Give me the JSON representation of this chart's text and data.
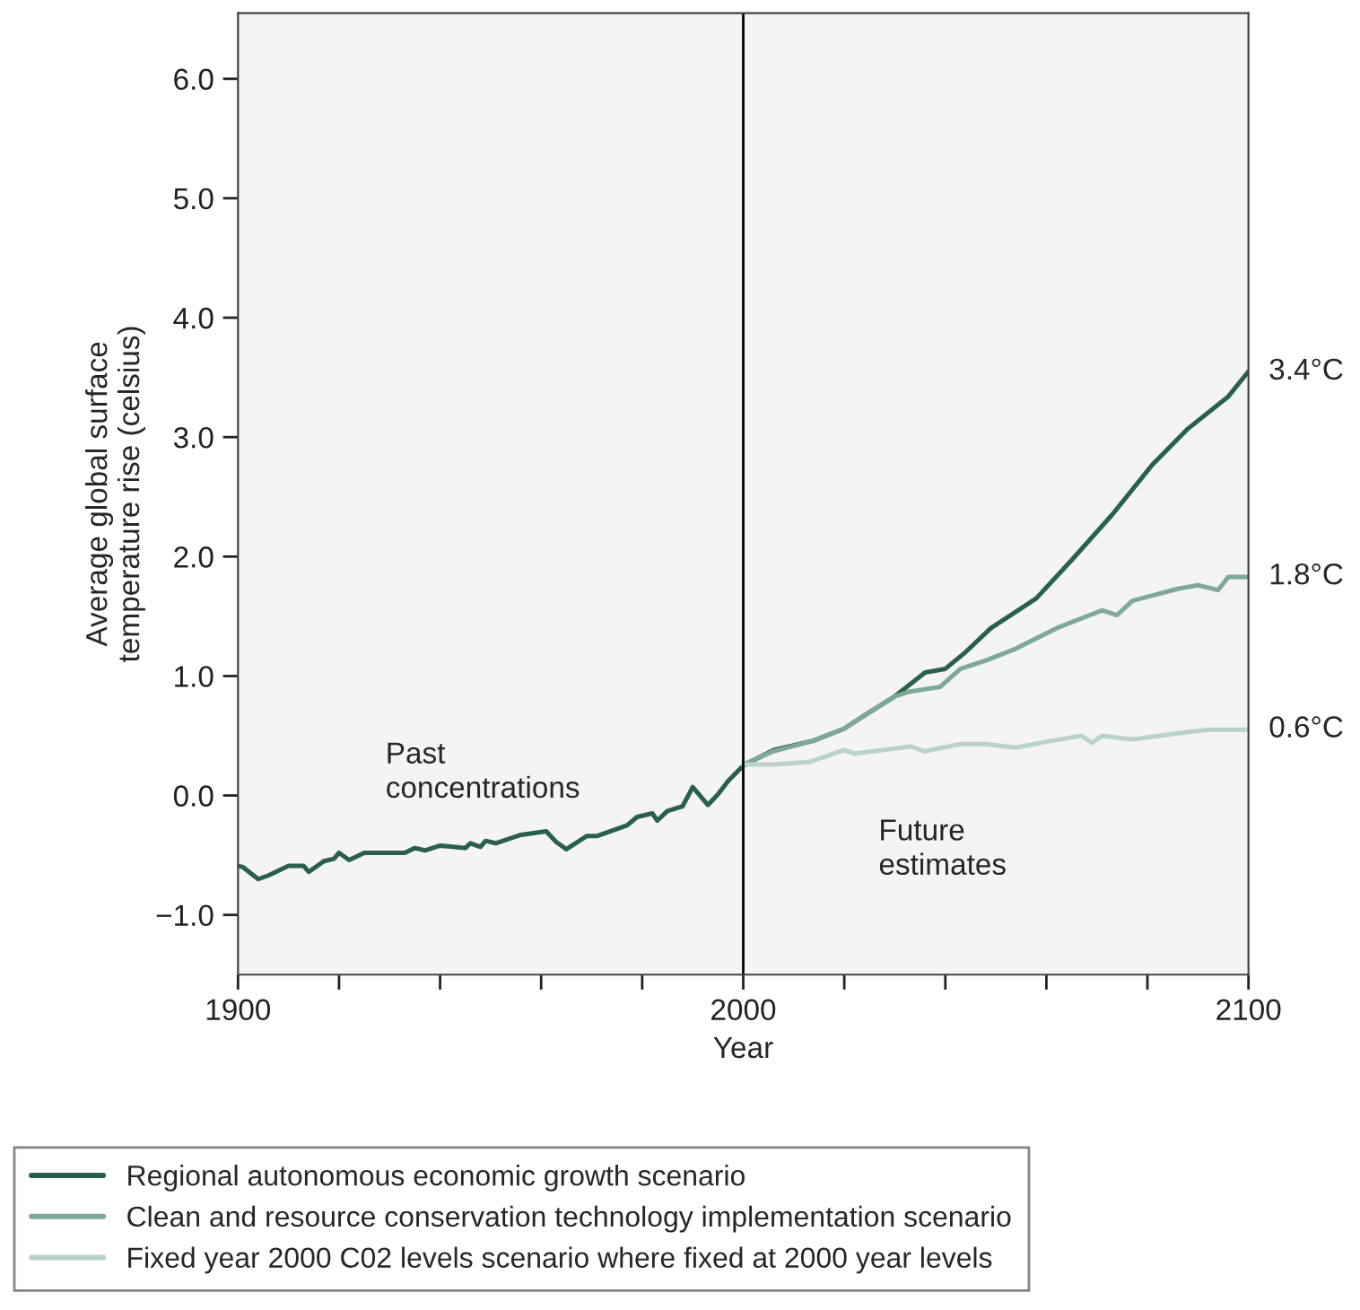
{
  "chart_data": {
    "type": "line",
    "xlabel": "Year",
    "ylabel": "Average global surface\ntemperature rise (celsius)",
    "xlim": [
      1900,
      2100
    ],
    "ylim": [
      -1.5,
      6.55
    ],
    "xticks": [
      1900,
      {
        "value": 1920,
        "label": null
      },
      {
        "value": 1940,
        "label": null
      },
      {
        "value": 1960,
        "label": null
      },
      {
        "value": 1980,
        "label": null
      },
      2000,
      {
        "value": 2020,
        "label": null
      },
      {
        "value": 2040,
        "label": null
      },
      {
        "value": 2060,
        "label": null
      },
      {
        "value": 2080,
        "label": null
      },
      2100
    ],
    "yticks": [
      {
        "value": -1,
        "label": "−1.0"
      },
      {
        "value": 0,
        "label": "0.0"
      },
      {
        "value": 1,
        "label": "1.0"
      },
      {
        "value": 2,
        "label": "2.0"
      },
      {
        "value": 3,
        "label": "3.0"
      },
      {
        "value": 4,
        "label": "4.0"
      },
      {
        "value": 5,
        "label": "5.0"
      },
      {
        "value": 6,
        "label": "6.0"
      }
    ],
    "grid": false,
    "legend": "bottom",
    "marker": "none",
    "line_style": "solid",
    "series": [
      {
        "name": "Regional autonomous economic growth scenario",
        "color": "#2a6049",
        "x": [
          1900,
          1901,
          1904,
          1906,
          1910,
          1913,
          1914,
          1917,
          1919,
          1920,
          1922,
          1925,
          1933,
          1935,
          1937,
          1940,
          1945,
          1946,
          1948,
          1949,
          1951,
          1956,
          1961,
          1963,
          1965,
          1969,
          1971,
          1975,
          1977,
          1979,
          1982,
          1983,
          1985,
          1988,
          1990,
          1993,
          1995,
          1997,
          2000,
          2006,
          2014,
          2020,
          2024,
          2030,
          2036,
          2040,
          2044,
          2049,
          2058,
          2065,
          2073,
          2081,
          2088,
          2096,
          2100
        ],
        "values": [
          -0.59,
          -0.6,
          -0.7,
          -0.67,
          -0.59,
          -0.59,
          -0.64,
          -0.55,
          -0.53,
          -0.48,
          -0.54,
          -0.48,
          -0.48,
          -0.44,
          -0.46,
          -0.42,
          -0.44,
          -0.4,
          -0.43,
          -0.38,
          -0.4,
          -0.33,
          -0.3,
          -0.39,
          -0.45,
          -0.34,
          -0.34,
          -0.28,
          -0.25,
          -0.18,
          -0.15,
          -0.21,
          -0.13,
          -0.09,
          0.07,
          -0.08,
          0.01,
          0.12,
          0.25,
          0.38,
          0.46,
          0.56,
          0.67,
          0.83,
          1.03,
          1.06,
          1.2,
          1.4,
          1.65,
          1.97,
          2.35,
          2.77,
          3.07,
          3.34,
          3.55
        ]
      },
      {
        "name": "Clean and resource conservation technology implementation scenario",
        "color": "#7fa896",
        "x": [
          2000,
          2006,
          2014,
          2020,
          2024,
          2030,
          2033,
          2039,
          2043,
          2048,
          2054,
          2062,
          2071,
          2074,
          2077,
          2086,
          2090,
          2094,
          2096,
          2100
        ],
        "values": [
          0.26,
          0.37,
          0.46,
          0.56,
          0.67,
          0.83,
          0.87,
          0.91,
          1.06,
          1.13,
          1.23,
          1.4,
          1.55,
          1.51,
          1.63,
          1.73,
          1.76,
          1.72,
          1.83,
          1.83
        ]
      },
      {
        "name": "Fixed year 2000 C02 levels scenario where fixed at 2000 year levels",
        "color": "#b9d3c6",
        "x": [
          2000,
          2006,
          2013,
          2020,
          2022,
          2033,
          2036,
          2043,
          2048,
          2054,
          2060,
          2067,
          2069,
          2071,
          2077,
          2086,
          2092,
          2100
        ],
        "values": [
          0.26,
          0.26,
          0.28,
          0.38,
          0.35,
          0.41,
          0.37,
          0.43,
          0.43,
          0.4,
          0.45,
          0.5,
          0.44,
          0.5,
          0.47,
          0.52,
          0.55,
          0.55
        ]
      }
    ],
    "ref_lines": [
      {
        "axis": "x",
        "value": 2000,
        "color": "#000000"
      }
    ],
    "annotations": [
      "3.4°C",
      "1.8°C",
      "0.6°C",
      "Past\nconcentrations",
      "Future\nestimates"
    ]
  }
}
